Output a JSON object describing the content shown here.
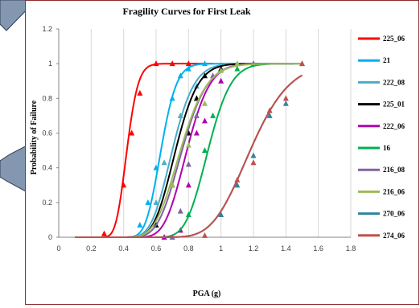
{
  "chart_data": {
    "type": "line",
    "title": "Fragility Curves for First Leak",
    "xlabel": "PGA (g)",
    "ylabel": "Probability of Failure",
    "xlim": [
      0,
      1.8
    ],
    "ylim": [
      0,
      1.2
    ],
    "xticks": [
      "0",
      "0.2",
      "0.4",
      "0.6",
      "0.8",
      "1",
      "1.2",
      "1.4",
      "1.6",
      "1.8"
    ],
    "yticks": [
      "0",
      "0.2",
      "0.4",
      "0.6",
      "0.8",
      "1",
      "1.2"
    ],
    "grid": "vertical",
    "legend": "right",
    "series": [
      {
        "name": "225_06",
        "color": "#ff0000",
        "median": 0.42,
        "beta": 0.13,
        "x_range": [
          0.1,
          0.95
        ],
        "points": [
          [
            0.28,
            0.02
          ],
          [
            0.4,
            0.3
          ],
          [
            0.45,
            0.6
          ],
          [
            0.5,
            0.83
          ],
          [
            0.6,
            1.0
          ],
          [
            0.7,
            1.0
          ],
          [
            0.8,
            1.0
          ]
        ]
      },
      {
        "name": "21",
        "color": "#00b0f0",
        "median": 0.63,
        "beta": 0.12,
        "x_range": [
          0.1,
          1.15
        ],
        "points": [
          [
            0.5,
            0.07
          ],
          [
            0.55,
            0.2
          ],
          [
            0.6,
            0.4
          ],
          [
            0.7,
            0.8
          ],
          [
            0.75,
            0.93
          ],
          [
            0.8,
            0.97
          ],
          [
            0.9,
            1.0
          ]
        ]
      },
      {
        "name": "222_08",
        "color": "#4bacc6",
        "median": 0.7,
        "beta": 0.15,
        "x_range": [
          0.1,
          1.45
        ],
        "points": [
          [
            0.6,
            0.2
          ],
          [
            0.65,
            0.43
          ],
          [
            0.75,
            0.7
          ],
          [
            0.85,
            0.87
          ],
          [
            1.0,
            0.97
          ]
        ]
      },
      {
        "name": "225_01",
        "color": "#000000",
        "median": 0.72,
        "beta": 0.15,
        "x_range": [
          0.1,
          1.45
        ],
        "points": [
          [
            0.6,
            0.07
          ],
          [
            0.7,
            0.3
          ],
          [
            0.8,
            0.6
          ],
          [
            0.85,
            0.8
          ],
          [
            0.9,
            0.93
          ],
          [
            1.0,
            0.97
          ]
        ]
      },
      {
        "name": "222_06",
        "color": "#b000b0",
        "median": 0.79,
        "beta": 0.14,
        "x_range": [
          0.1,
          1.45
        ],
        "points": [
          [
            0.65,
            0.0
          ],
          [
            0.75,
            0.04
          ],
          [
            0.8,
            0.3
          ],
          [
            0.85,
            0.6
          ],
          [
            0.9,
            0.67
          ],
          [
            1.0,
            0.9
          ]
        ]
      },
      {
        "name": "16",
        "color": "#00b050",
        "median": 0.92,
        "beta": 0.12,
        "x_range": [
          0.1,
          1.5
        ],
        "points": [
          [
            0.7,
            0.0
          ],
          [
            0.8,
            0.13
          ],
          [
            0.9,
            0.5
          ],
          [
            0.95,
            0.7
          ],
          [
            1.1,
            0.97
          ],
          [
            1.2,
            1.0
          ]
        ]
      },
      {
        "name": "216_08",
        "color": "#8064a2",
        "median": 0.76,
        "beta": 0.16,
        "x_range": [
          0.1,
          1.5
        ],
        "points": [
          [
            0.7,
            0.0
          ],
          [
            0.75,
            0.15
          ],
          [
            0.8,
            0.42
          ],
          [
            0.85,
            0.7
          ],
          [
            0.95,
            0.93
          ],
          [
            1.2,
            1.0
          ]
        ]
      },
      {
        "name": "216_06",
        "color": "#9bbb59",
        "median": 0.75,
        "beta": 0.17,
        "x_range": [
          0.1,
          1.5
        ],
        "points": [
          [
            0.7,
            0.3
          ],
          [
            0.8,
            0.53
          ],
          [
            0.9,
            0.77
          ],
          [
            1.0,
            0.96
          ],
          [
            1.1,
            1.0
          ],
          [
            1.5,
            1.0
          ]
        ]
      },
      {
        "name": "270_06",
        "color": "#31859c",
        "median": 1.18,
        "beta": 0.16,
        "x_range": [
          0.1,
          1.5
        ],
        "points": [
          [
            1.0,
            0.13
          ],
          [
            1.1,
            0.3
          ],
          [
            1.2,
            0.47
          ],
          [
            1.3,
            0.7
          ],
          [
            1.4,
            0.77
          ]
        ]
      },
      {
        "name": "274_06",
        "color": "#c0504d",
        "median": 1.18,
        "beta": 0.16,
        "x_range": [
          0.1,
          1.5
        ],
        "points": [
          [
            0.9,
            0.01
          ],
          [
            1.1,
            0.33
          ],
          [
            1.2,
            0.43
          ],
          [
            1.3,
            0.73
          ],
          [
            1.4,
            0.8
          ],
          [
            1.5,
            1.0
          ]
        ]
      }
    ]
  }
}
